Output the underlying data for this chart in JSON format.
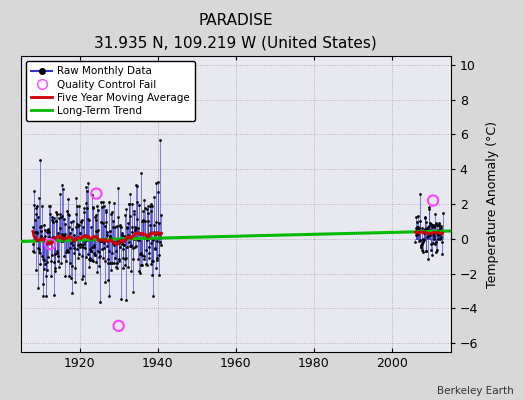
{
  "title": "PARADISE",
  "subtitle": "31.935 N, 109.219 W (United States)",
  "ylabel": "Temperature Anomaly (°C)",
  "credit": "Berkeley Earth",
  "xlim": [
    1905,
    2015
  ],
  "ylim": [
    -6.5,
    10.5
  ],
  "yticks": [
    -6,
    -4,
    -2,
    0,
    2,
    4,
    6,
    8,
    10
  ],
  "xticks": [
    1920,
    1940,
    1960,
    1980,
    2000
  ],
  "bg_color": "#d8d8d8",
  "plot_bg_color": "#e8e8f0",
  "seed": 12345,
  "line_colors": {
    "raw": "#3333cc",
    "qc": "#ff44ff",
    "moving_avg": "#cc0000",
    "trend": "#00bb00"
  },
  "legend_labels": [
    "Raw Monthly Data",
    "Quality Control Fail",
    "Five Year Moving Average",
    "Long-Term Trend"
  ],
  "period1_start": 1908,
  "period1_end": 1940,
  "period2_start": 2006,
  "period2_end": 2012,
  "trend_x": [
    1905,
    2015
  ],
  "trend_y": [
    -0.15,
    0.45
  ],
  "qc_times": [
    1912.5,
    1924.3,
    1930.0,
    2010.5
  ],
  "qc_vals": [
    -0.3,
    2.6,
    -5.0,
    2.2
  ]
}
